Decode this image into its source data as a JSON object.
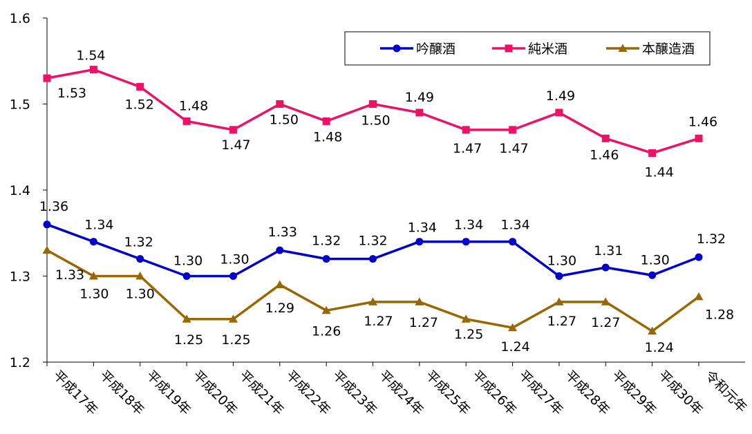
{
  "chart_data": {
    "type": "line",
    "categories": [
      "平成17年",
      "平成18年",
      "平成19年",
      "平成20年",
      "平成21年",
      "平成22年",
      "平成23年",
      "平成24年",
      "平成25年",
      "平成26年",
      "平成27年",
      "平成28年",
      "平成29年",
      "平成30年",
      "令和元年"
    ],
    "ylim": [
      1.2,
      1.6
    ],
    "yticks": [
      "1.2",
      "1.3",
      "1.4",
      "1.5",
      "1.6"
    ],
    "grid": false,
    "legend_position": "top-right",
    "series": [
      {
        "name": "吟醸酒",
        "color": "#0000CC",
        "marker": "circle",
        "values": [
          1.36,
          1.34,
          1.32,
          1.3,
          1.3,
          1.33,
          1.32,
          1.32,
          1.34,
          1.34,
          1.34,
          1.3,
          1.31,
          1.301,
          1.322
        ],
        "labels": [
          "1.36",
          "1.34",
          "1.32",
          "1.30",
          "1.30",
          "1.33",
          "1.32",
          "1.32",
          "1.34",
          "1.34",
          "1.34",
          "1.30",
          "1.31",
          "1.30",
          "1.32"
        ]
      },
      {
        "name": "純米酒",
        "color": "#EE1166",
        "marker": "square",
        "values": [
          1.53,
          1.54,
          1.52,
          1.48,
          1.47,
          1.5,
          1.48,
          1.5,
          1.49,
          1.47,
          1.47,
          1.49,
          1.46,
          1.443,
          1.46
        ],
        "labels": [
          "1.53",
          "1.54",
          "1.52",
          "1.48",
          "1.47",
          "1.50",
          "1.48",
          "1.50",
          "1.49",
          "1.47",
          "1.47",
          "1.49",
          "1.46",
          "1.44",
          "1.46"
        ]
      },
      {
        "name": "本醸造酒",
        "color": "#996600",
        "marker": "triangle",
        "values": [
          1.33,
          1.3,
          1.3,
          1.25,
          1.25,
          1.29,
          1.26,
          1.27,
          1.27,
          1.25,
          1.24,
          1.27,
          1.27,
          1.236,
          1.276
        ],
        "labels": [
          "1.33",
          "1.30",
          "1.30",
          "1.25",
          "1.25",
          "1.29",
          "1.26",
          "1.27",
          "1.27",
          "1.25",
          "1.24",
          "1.27",
          "1.27",
          "1.24",
          "1.28"
        ]
      }
    ]
  }
}
